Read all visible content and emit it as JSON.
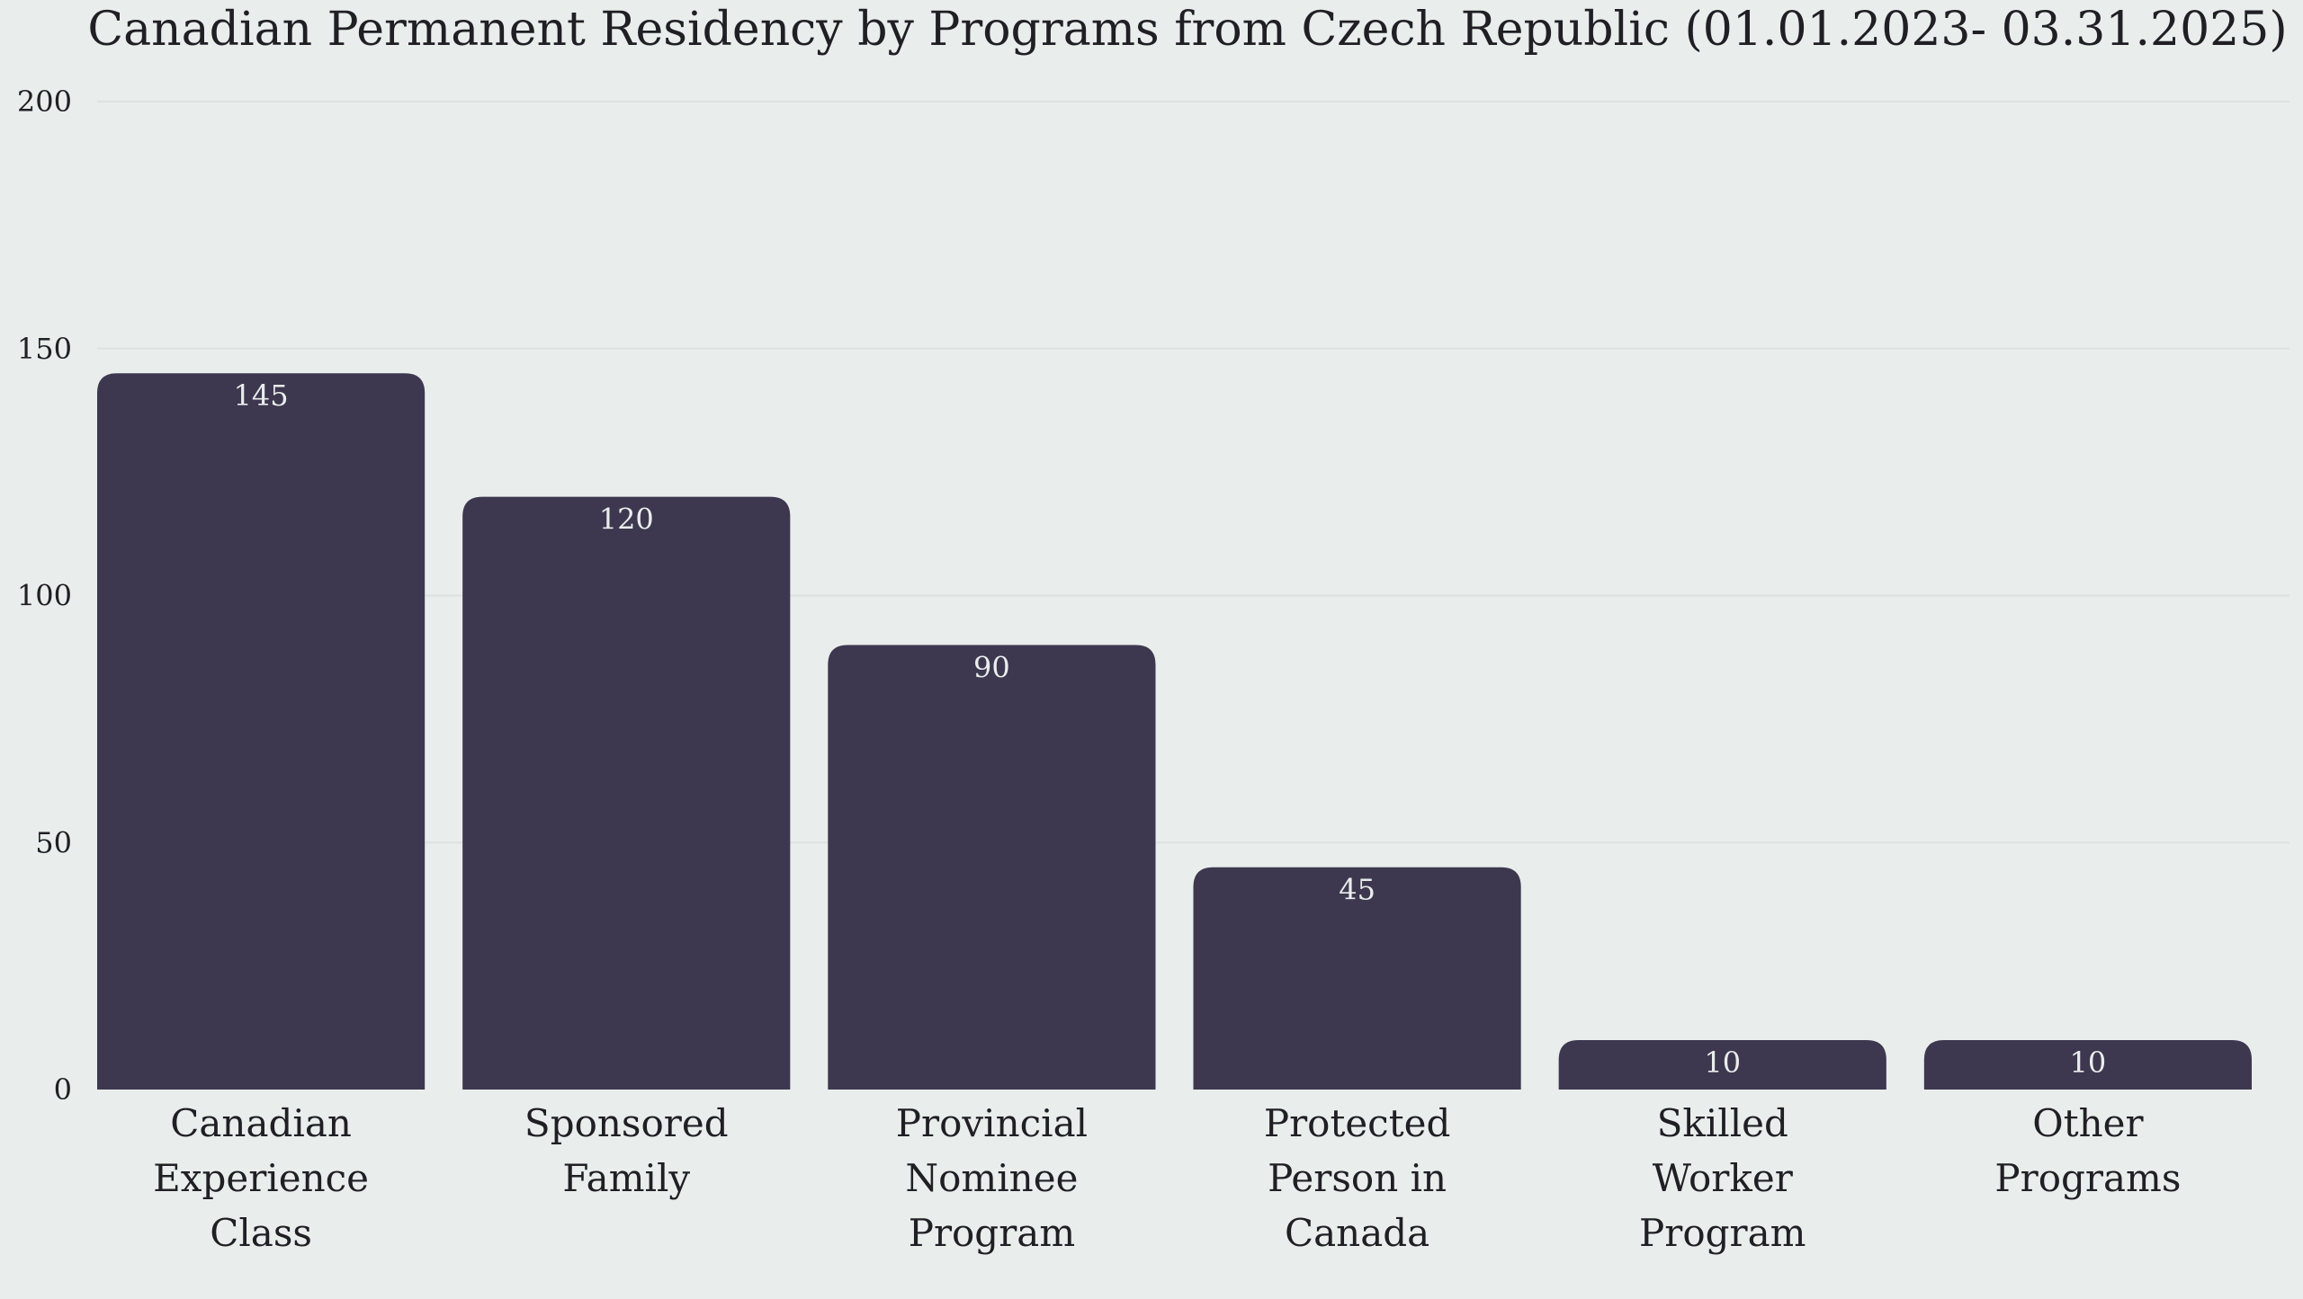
{
  "chart_data": {
    "type": "bar",
    "title": "Canadian Permanent Residency by Programs from Czech Republic (01.01.2023- 03.31.2025)",
    "xlabel": "",
    "ylabel": "",
    "categories": [
      "Canadian Experience Class",
      "Sponsored Family",
      "Provincial Nominee Program",
      "Protected Person in Canada",
      "Skilled Worker Program",
      "Other Programs"
    ],
    "category_lines": [
      [
        "Canadian",
        "Experience",
        "Class"
      ],
      [
        "Sponsored",
        "Family"
      ],
      [
        "Provincial",
        "Nominee",
        "Program"
      ],
      [
        "Protected",
        "Person in",
        "Canada"
      ],
      [
        "Skilled",
        "Worker",
        "Program"
      ],
      [
        "Other",
        "Programs"
      ]
    ],
    "values": [
      145,
      120,
      90,
      45,
      10,
      10
    ],
    "data_labels": [
      "145",
      "120",
      "90",
      "45",
      "10",
      "10"
    ],
    "ylim": [
      0,
      200
    ],
    "yticks": [
      0,
      50,
      100,
      150,
      200
    ],
    "ytick_labels": [
      "0",
      "50",
      "100",
      "150",
      "200"
    ],
    "grid": true,
    "legend": "none",
    "colors": {
      "bar": "#3d384f",
      "background": "#e9edec",
      "grid": "#dde2e1",
      "text": "#1f1f24",
      "data_label": "#e9edec"
    }
  }
}
